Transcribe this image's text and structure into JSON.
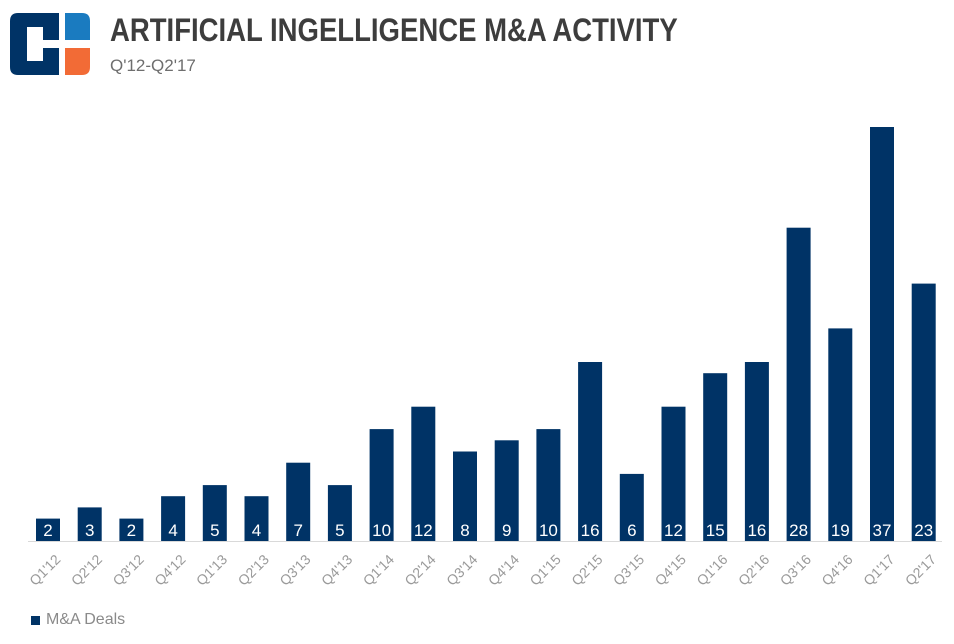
{
  "header": {
    "title": "ARTIFICIAL INGELLIGENCE M&A ACTIVITY",
    "subtitle": "Q'12-Q2'17"
  },
  "logo": {
    "icon": "cb-insights-logo-icon",
    "colors": {
      "dark": "#003366",
      "blue": "#1a7bc0",
      "orange": "#f26b36"
    }
  },
  "colors": {
    "bar": "#003366",
    "bar_label": "#ffffff",
    "tick_label": "#9a9a9a",
    "axis": "#d9d9d9"
  },
  "chart_data": {
    "type": "bar",
    "title": "ARTIFICIAL INGELLIGENCE M&A ACTIVITY",
    "subtitle": "Q'12-Q2'17",
    "xlabel": "",
    "ylabel": "",
    "categories": [
      "Q1'12",
      "Q2'12",
      "Q3'12",
      "Q4'12",
      "Q1'13",
      "Q2'13",
      "Q3'13",
      "Q4'13",
      "Q1'14",
      "Q2'14",
      "Q3'14",
      "Q4'14",
      "Q1'15",
      "Q2'15",
      "Q3'15",
      "Q4'15",
      "Q1'16",
      "Q2'16",
      "Q3'16",
      "Q4'16",
      "Q1'17",
      "Q2'17"
    ],
    "series": [
      {
        "name": "M&A Deals",
        "values": [
          2,
          3,
          2,
          4,
          5,
          4,
          7,
          5,
          10,
          12,
          8,
          9,
          10,
          16,
          6,
          12,
          15,
          16,
          28,
          19,
          37,
          23
        ]
      }
    ],
    "ylim": [
      0,
      37
    ],
    "grid": false,
    "legend": "bottom-left"
  },
  "legend": {
    "label": "M&A Deals"
  }
}
